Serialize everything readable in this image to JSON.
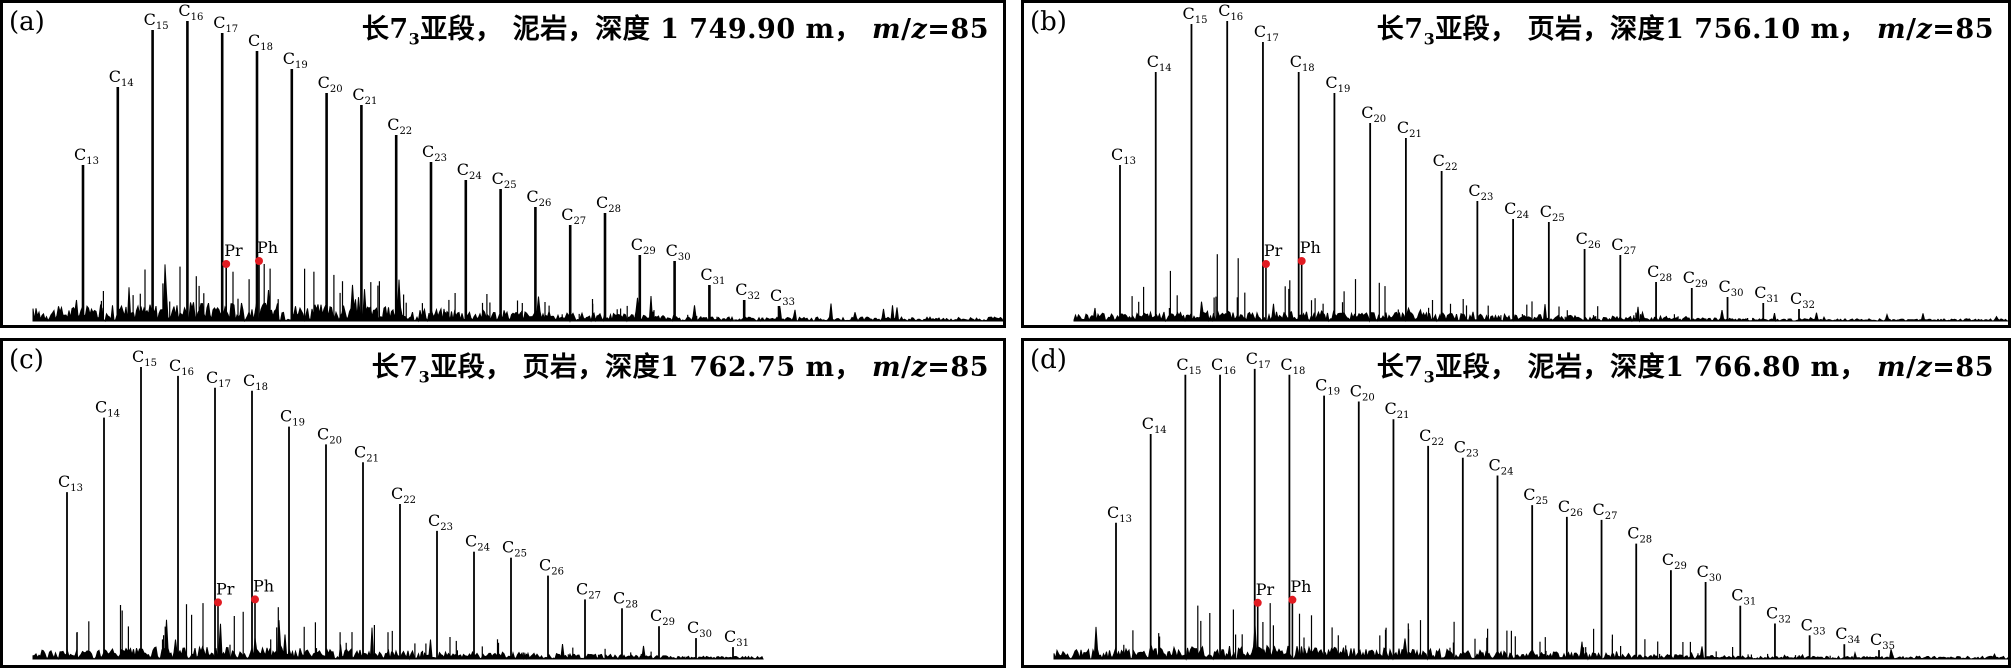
{
  "panels": [
    {
      "id": "a",
      "letter": "(a)",
      "title_prefix": "长7",
      "title_sub": "3",
      "title_rest": "亚段，  泥岩，深度 1 749.90 m，",
      "mz_var": "m",
      "mz_sep": "/",
      "mz_var2": "z",
      "mz_value": "=85",
      "chart_data": {
        "type": "line",
        "xlabel": "",
        "ylabel": "",
        "peaks": [
          {
            "label": "C",
            "num": "13",
            "rel": 0.52
          },
          {
            "label": "C",
            "num": "14",
            "rel": 0.78
          },
          {
            "label": "C",
            "num": "15",
            "rel": 0.97
          },
          {
            "label": "C",
            "num": "16",
            "rel": 1.0
          },
          {
            "label": "C",
            "num": "17",
            "rel": 0.96
          },
          {
            "label": "C",
            "num": "18",
            "rel": 0.9
          },
          {
            "label": "C",
            "num": "19",
            "rel": 0.84
          },
          {
            "label": "C",
            "num": "20",
            "rel": 0.76
          },
          {
            "label": "C",
            "num": "21",
            "rel": 0.72
          },
          {
            "label": "C",
            "num": "22",
            "rel": 0.62
          },
          {
            "label": "C",
            "num": "23",
            "rel": 0.53
          },
          {
            "label": "C",
            "num": "24",
            "rel": 0.47
          },
          {
            "label": "C",
            "num": "25",
            "rel": 0.44
          },
          {
            "label": "C",
            "num": "26",
            "rel": 0.38
          },
          {
            "label": "C",
            "num": "27",
            "rel": 0.32
          },
          {
            "label": "C",
            "num": "28",
            "rel": 0.36
          },
          {
            "label": "C",
            "num": "29",
            "rel": 0.22
          },
          {
            "label": "C",
            "num": "30",
            "rel": 0.2
          },
          {
            "label": "C",
            "num": "31",
            "rel": 0.12
          },
          {
            "label": "C",
            "num": "32",
            "rel": 0.07
          },
          {
            "label": "C",
            "num": "33",
            "rel": 0.05
          }
        ],
        "markers": [
          {
            "label": "Pr",
            "color": "#e11b22"
          },
          {
            "label": "Ph",
            "color": "#e11b22"
          }
        ]
      }
    },
    {
      "id": "b",
      "letter": "(b)",
      "title_prefix": "长7",
      "title_sub": "3",
      "title_rest": "亚段，  页岩，深度1 756.10 m，",
      "mz_var": "m",
      "mz_sep": "/",
      "mz_var2": "z",
      "mz_value": "=85",
      "chart_data": {
        "type": "line",
        "xlabel": "",
        "ylabel": "",
        "peaks": [
          {
            "label": "C",
            "num": "13",
            "rel": 0.52
          },
          {
            "label": "C",
            "num": "14",
            "rel": 0.83
          },
          {
            "label": "C",
            "num": "15",
            "rel": 0.99
          },
          {
            "label": "C",
            "num": "16",
            "rel": 1.0
          },
          {
            "label": "C",
            "num": "17",
            "rel": 0.93
          },
          {
            "label": "C",
            "num": "18",
            "rel": 0.83
          },
          {
            "label": "C",
            "num": "19",
            "rel": 0.76
          },
          {
            "label": "C",
            "num": "20",
            "rel": 0.66
          },
          {
            "label": "C",
            "num": "21",
            "rel": 0.61
          },
          {
            "label": "C",
            "num": "22",
            "rel": 0.5
          },
          {
            "label": "C",
            "num": "23",
            "rel": 0.4
          },
          {
            "label": "C",
            "num": "24",
            "rel": 0.34
          },
          {
            "label": "C",
            "num": "25",
            "rel": 0.33
          },
          {
            "label": "C",
            "num": "26",
            "rel": 0.24
          },
          {
            "label": "C",
            "num": "27",
            "rel": 0.22
          },
          {
            "label": "C",
            "num": "28",
            "rel": 0.13
          },
          {
            "label": "C",
            "num": "29",
            "rel": 0.11
          },
          {
            "label": "C",
            "num": "30",
            "rel": 0.08
          },
          {
            "label": "C",
            "num": "31",
            "rel": 0.06
          },
          {
            "label": "C",
            "num": "32",
            "rel": 0.04
          }
        ],
        "markers": [
          {
            "label": "Pr",
            "color": "#e11b22"
          },
          {
            "label": "Ph",
            "color": "#e11b22"
          }
        ]
      }
    },
    {
      "id": "c",
      "letter": "(c)",
      "title_prefix": "长7",
      "title_sub": "3",
      "title_rest": "亚段，  页岩，深度1 762.75 m，",
      "mz_var": "m",
      "mz_sep": "/",
      "mz_var2": "z",
      "mz_value": "=85",
      "chart_data": {
        "type": "line",
        "xlabel": "",
        "ylabel": "",
        "peaks": [
          {
            "label": "C",
            "num": "13",
            "rel": 0.56
          },
          {
            "label": "C",
            "num": "14",
            "rel": 0.81
          },
          {
            "label": "C",
            "num": "15",
            "rel": 0.98
          },
          {
            "label": "C",
            "num": "16",
            "rel": 0.95
          },
          {
            "label": "C",
            "num": "17",
            "rel": 0.91
          },
          {
            "label": "C",
            "num": "18",
            "rel": 0.9
          },
          {
            "label": "C",
            "num": "19",
            "rel": 0.78
          },
          {
            "label": "C",
            "num": "20",
            "rel": 0.72
          },
          {
            "label": "C",
            "num": "21",
            "rel": 0.66
          },
          {
            "label": "C",
            "num": "22",
            "rel": 0.52
          },
          {
            "label": "C",
            "num": "23",
            "rel": 0.43
          },
          {
            "label": "C",
            "num": "24",
            "rel": 0.36
          },
          {
            "label": "C",
            "num": "25",
            "rel": 0.34
          },
          {
            "label": "C",
            "num": "26",
            "rel": 0.28
          },
          {
            "label": "C",
            "num": "27",
            "rel": 0.2
          },
          {
            "label": "C",
            "num": "28",
            "rel": 0.17
          },
          {
            "label": "C",
            "num": "29",
            "rel": 0.11
          },
          {
            "label": "C",
            "num": "30",
            "rel": 0.07
          },
          {
            "label": "C",
            "num": "31",
            "rel": 0.04
          }
        ],
        "markers": [
          {
            "label": "Pr",
            "color": "#e11b22"
          },
          {
            "label": "Ph",
            "color": "#e11b22"
          }
        ]
      }
    },
    {
      "id": "d",
      "letter": "(d)",
      "title_prefix": "长7",
      "title_sub": "3",
      "title_rest": "亚段，  泥岩，深度1 766.80 m，",
      "mz_var": "m",
      "mz_sep": "/",
      "mz_var2": "z",
      "mz_value": "=85",
      "chart_data": {
        "type": "line",
        "xlabel": "",
        "ylabel": "",
        "peaks": [
          {
            "label": "C",
            "num": "13",
            "rel": 0.46
          },
          {
            "label": "C",
            "num": "14",
            "rel": 0.76
          },
          {
            "label": "C",
            "num": "15",
            "rel": 0.96
          },
          {
            "label": "C",
            "num": "16",
            "rel": 0.96
          },
          {
            "label": "C",
            "num": "17",
            "rel": 0.98
          },
          {
            "label": "C",
            "num": "18",
            "rel": 0.96
          },
          {
            "label": "C",
            "num": "19",
            "rel": 0.89
          },
          {
            "label": "C",
            "num": "20",
            "rel": 0.87
          },
          {
            "label": "C",
            "num": "21",
            "rel": 0.81
          },
          {
            "label": "C",
            "num": "22",
            "rel": 0.72
          },
          {
            "label": "C",
            "num": "23",
            "rel": 0.68
          },
          {
            "label": "C",
            "num": "24",
            "rel": 0.62
          },
          {
            "label": "C",
            "num": "25",
            "rel": 0.52
          },
          {
            "label": "C",
            "num": "26",
            "rel": 0.48
          },
          {
            "label": "C",
            "num": "27",
            "rel": 0.47
          },
          {
            "label": "C",
            "num": "28",
            "rel": 0.39
          },
          {
            "label": "C",
            "num": "29",
            "rel": 0.3
          },
          {
            "label": "C",
            "num": "30",
            "rel": 0.26
          },
          {
            "label": "C",
            "num": "31",
            "rel": 0.18
          },
          {
            "label": "C",
            "num": "32",
            "rel": 0.12
          },
          {
            "label": "C",
            "num": "33",
            "rel": 0.08
          },
          {
            "label": "C",
            "num": "34",
            "rel": 0.05
          },
          {
            "label": "C",
            "num": "35",
            "rel": 0.03
          }
        ],
        "markers": [
          {
            "label": "Pr",
            "color": "#e11b22"
          },
          {
            "label": "Ph",
            "color": "#e11b22"
          }
        ]
      }
    }
  ]
}
